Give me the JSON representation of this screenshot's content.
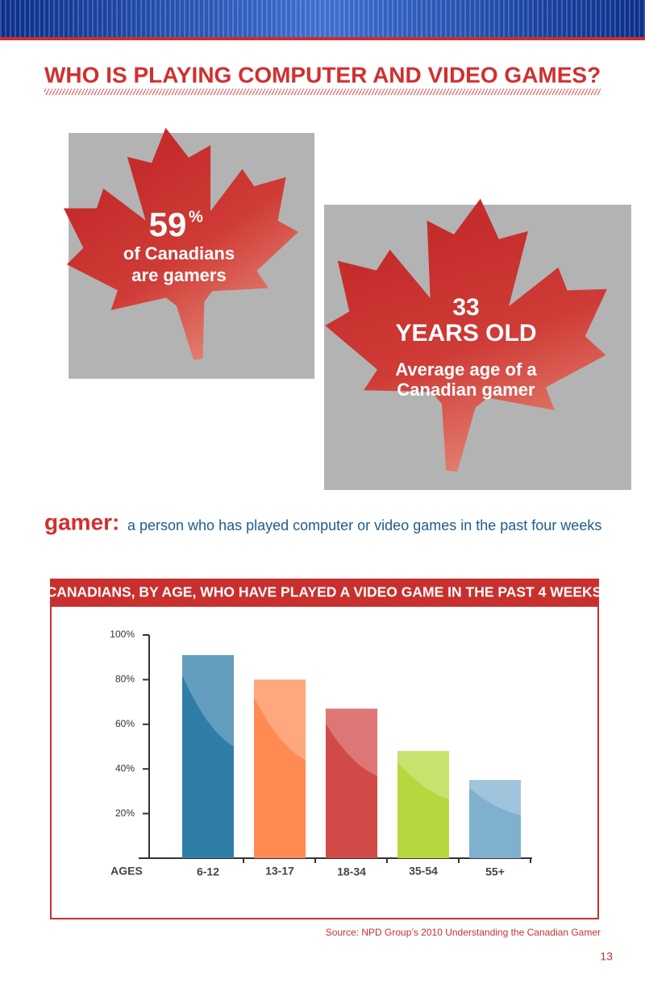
{
  "header": {
    "title": "WHO IS PLAYING COMPUTER AND VIDEO GAMES?"
  },
  "stats": [
    {
      "number": "59",
      "unit": "%",
      "lines": [
        "of Canadians",
        "are gamers"
      ]
    },
    {
      "number": "33",
      "unit": "YEARS OLD",
      "lines": [
        "Average age of a",
        "Canadian gamer"
      ]
    }
  ],
  "definition": {
    "term": "gamer:",
    "text": "a person who has played computer or video games in the past four weeks"
  },
  "chart_data": {
    "type": "bar",
    "title": "CANADIANS, BY AGE, WHO HAVE PLAYED A VIDEO GAME IN THE PAST 4 WEEKS",
    "x_label": "AGES",
    "categories": [
      "6-12",
      "13-17",
      "18-34",
      "35-54",
      "55+"
    ],
    "values": [
      91,
      80,
      67,
      48,
      35
    ],
    "colors": [
      "#2f7ea8",
      "#ff8a52",
      "#d24a48",
      "#b6d83e",
      "#7fb1cf"
    ],
    "ylim": [
      0,
      100
    ],
    "yticks": [
      {
        "value": 20,
        "label": "20%"
      },
      {
        "value": 40,
        "label": "40%"
      },
      {
        "value": 60,
        "label": "60%"
      },
      {
        "value": 80,
        "label": "80%"
      },
      {
        "value": 100,
        "label": "100%"
      }
    ]
  },
  "source": "Source: NPD Group’s 2010 Understanding the Canadian Gamer",
  "page_number": "13"
}
